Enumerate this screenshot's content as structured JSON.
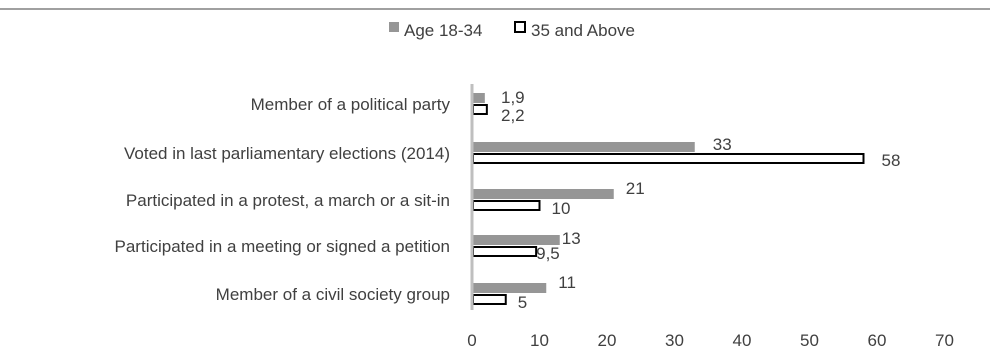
{
  "chart_data": {
    "type": "bar",
    "orientation": "horizontal",
    "categories": [
      "Member of a political party",
      "Voted in last parliamentary elections (2014)",
      "Participated in a protest, a march or a sit-in",
      "Participated in a meeting or signed a petition",
      "Member of a civil society group"
    ],
    "series": [
      {
        "name": "Age 18-34",
        "values": [
          1.9,
          33,
          21,
          13,
          11
        ],
        "labels": [
          "1,9",
          "33",
          "21",
          "13",
          "11"
        ],
        "color": "#969696"
      },
      {
        "name": "35 and Above",
        "values": [
          2.2,
          58,
          10,
          9.5,
          5
        ],
        "labels": [
          "2,2",
          "58",
          "10",
          "9,5",
          "5"
        ],
        "color": "#ffffff",
        "stroke": "#000000"
      }
    ],
    "xlim": [
      0,
      70
    ],
    "xticks": [
      "0",
      "10",
      "20",
      "30",
      "40",
      "50",
      "60",
      "70"
    ],
    "grid": false,
    "legend_position": "top"
  }
}
